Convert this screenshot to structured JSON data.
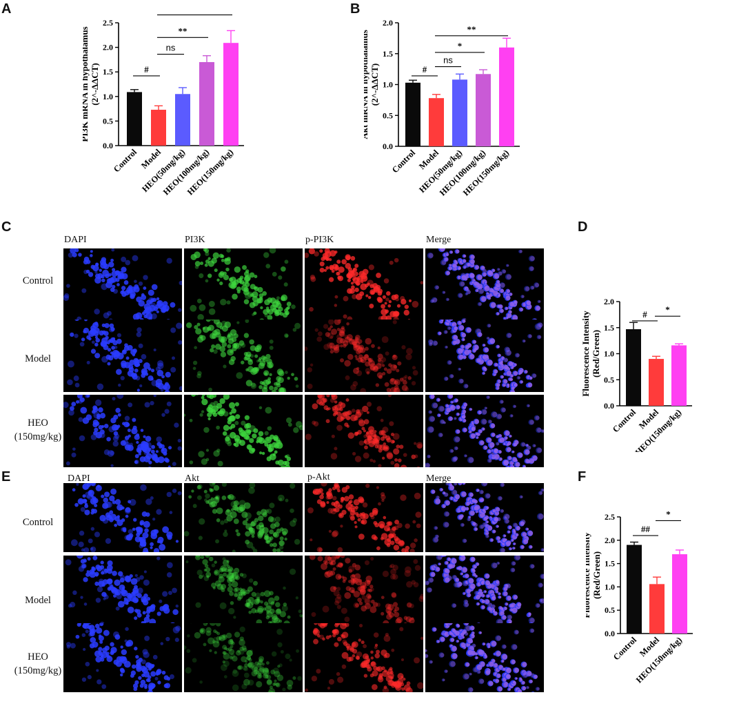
{
  "panels": {
    "A": "A",
    "B": "B",
    "C": "C",
    "D": "D",
    "E": "E",
    "F": "F"
  },
  "colors": {
    "Control": "#0a0a0a",
    "Model": "#ff3b3b",
    "HEO(50mg/kg)": "#5b5bff",
    "HEO(100mg/kg)": "#c95ad6",
    "HEO(150mg/kg)": "#ff40f2"
  },
  "chart_data": [
    {
      "id": "A",
      "type": "bar",
      "categories": [
        "Control",
        "Model",
        "HEO(50mg/kg)",
        "HEO(100mg/kg)",
        "HEO(150mg/kg)"
      ],
      "values": [
        1.09,
        0.73,
        1.05,
        1.7,
        2.09
      ],
      "errors": [
        0.05,
        0.08,
        0.13,
        0.13,
        0.25
      ],
      "ylabel_lines": [
        "PI3K mRNA in hypothalamus",
        "(2^-ΔΔCT)"
      ],
      "ylim": [
        0,
        2.5
      ],
      "yticks": [
        "0.0",
        "0.5",
        "1.0",
        "1.5",
        "2.0",
        "2.5"
      ],
      "significance": [
        {
          "from": 0,
          "to": 1,
          "label": "#",
          "y": 1.42
        },
        {
          "from": 1,
          "to": 2,
          "label": "ns",
          "y": 1.86
        },
        {
          "from": 1,
          "to": 3,
          "label": "**",
          "y": 2.2
        },
        {
          "from": 1,
          "to": 4,
          "label": "**",
          "y": 2.66
        }
      ]
    },
    {
      "id": "B",
      "type": "bar",
      "categories": [
        "Control",
        "Model",
        "HEO(50mg/kg)",
        "HEO(100mg/kg)",
        "HEO(150mg/kg)"
      ],
      "values": [
        1.03,
        0.78,
        1.08,
        1.17,
        1.6
      ],
      "errors": [
        0.04,
        0.06,
        0.09,
        0.07,
        0.15
      ],
      "ylabel_lines": [
        "Akt mRNA in hypothalamus",
        "(2^-ΔΔCT)"
      ],
      "ylim": [
        0,
        2.0
      ],
      "yticks": [
        "0.0",
        "0.5",
        "1.0",
        "1.5",
        "2.0"
      ],
      "significance": [
        {
          "from": 0,
          "to": 1,
          "label": "#",
          "y": 1.14
        },
        {
          "from": 1,
          "to": 2,
          "label": "ns",
          "y": 1.29
        },
        {
          "from": 1,
          "to": 3,
          "label": "*",
          "y": 1.52
        },
        {
          "from": 1,
          "to": 4,
          "label": "**",
          "y": 1.79
        }
      ]
    },
    {
      "id": "D",
      "type": "bar",
      "categories": [
        "Control",
        "Model",
        "HEO(150mg/kg)"
      ],
      "values": [
        1.47,
        0.9,
        1.16
      ],
      "errors": [
        0.13,
        0.05,
        0.03
      ],
      "ylabel_lines": [
        "Fluorescence Intensity",
        "(Red/Green)"
      ],
      "ylim": [
        0,
        2.0
      ],
      "yticks": [
        "0.0",
        "0.5",
        "1.0",
        "1.5",
        "2.0"
      ],
      "significance": [
        {
          "from": 0,
          "to": 1,
          "label": "#",
          "y": 1.63
        },
        {
          "from": 1,
          "to": 2,
          "label": "*",
          "y": 1.72
        }
      ]
    },
    {
      "id": "F",
      "type": "bar",
      "categories": [
        "Control",
        "Model",
        "HEO(150mg/kg)"
      ],
      "values": [
        1.9,
        1.06,
        1.7
      ],
      "errors": [
        0.06,
        0.15,
        0.09
      ],
      "ylabel_lines": [
        "Fluorescence Intensity",
        "(Red/Green)"
      ],
      "ylim": [
        0,
        2.5
      ],
      "yticks": [
        "0.0",
        "0.5",
        "1.0",
        "1.5",
        "2.0",
        "2.5"
      ],
      "significance": [
        {
          "from": 0,
          "to": 1,
          "label": "##",
          "y": 2.1
        },
        {
          "from": 1,
          "to": 2,
          "label": "*",
          "y": 2.42
        }
      ]
    }
  ],
  "imaging_C": {
    "columns": [
      "DAPI",
      "PI3K",
      "p-PI3K",
      "Merge"
    ],
    "rows": [
      {
        "line1": "Control",
        "line2": ""
      },
      {
        "line1": "Model",
        "line2": ""
      },
      {
        "line1": "HEO",
        "line2": "(150mg/kg)"
      }
    ]
  },
  "imaging_E": {
    "columns": [
      "DAPI",
      "Akt",
      "p-Akt",
      "Merge"
    ],
    "rows": [
      {
        "line1": "Control",
        "line2": ""
      },
      {
        "line1": "Model",
        "line2": ""
      },
      {
        "line1": "HEO",
        "line2": "(150mg/kg)"
      }
    ]
  }
}
